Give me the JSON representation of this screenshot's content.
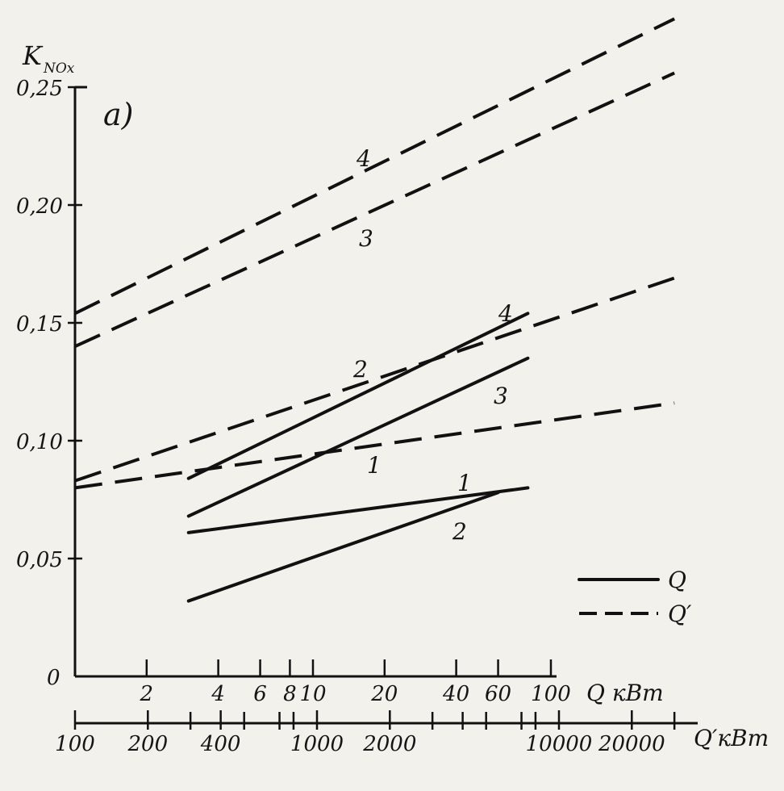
{
  "panel_label": "а)",
  "y_axis": {
    "label": "K",
    "label_sub": "NOx"
  },
  "y_ticks": [
    "0",
    "0,05",
    "0,10",
    "0,15",
    "0,20",
    "0,25"
  ],
  "q_axis_ticks": [
    "2",
    "4",
    "6",
    "8",
    "10",
    "20",
    "40",
    "60",
    "100"
  ],
  "q_axis_label": "Q кВт",
  "qp_axis_ticks": [
    "100",
    "200",
    "400",
    "1000",
    "2000",
    "10000",
    "20000"
  ],
  "qp_axis_label": "Q′кВт",
  "legend": {
    "solid": "Q",
    "dashed": "Q′"
  },
  "curve_labels": {
    "solid_1": "1",
    "solid_2": "2",
    "solid_3": "3",
    "solid_4": "4",
    "dashed_1": "1",
    "dashed_2": "2",
    "dashed_3": "3",
    "dashed_4": "4"
  },
  "chart_data": {
    "type": "line",
    "title": "",
    "ylabel": "K NOx",
    "ylim": [
      0,
      0.25
    ],
    "x_scale": "log",
    "xlabel_bottom_1": "Q кВт",
    "xlabel_bottom_2": "Q′кВт",
    "series": [
      {
        "name": "1",
        "axis": "Q",
        "style": "solid",
        "x": [
          3,
          80
        ],
        "y": [
          0.061,
          0.08
        ]
      },
      {
        "name": "2",
        "axis": "Q",
        "style": "solid",
        "x": [
          3,
          60
        ],
        "y": [
          0.032,
          0.078
        ]
      },
      {
        "name": "3",
        "axis": "Q",
        "style": "solid",
        "x": [
          3,
          80
        ],
        "y": [
          0.068,
          0.135
        ]
      },
      {
        "name": "4",
        "axis": "Q",
        "style": "solid",
        "x": [
          3,
          80
        ],
        "y": [
          0.084,
          0.154
        ]
      },
      {
        "name": "1",
        "axis": "Q′",
        "style": "dashed",
        "x": [
          100,
          30000
        ],
        "y": [
          0.08,
          0.116
        ]
      },
      {
        "name": "2",
        "axis": "Q′",
        "style": "dashed",
        "x": [
          100,
          30000
        ],
        "y": [
          0.083,
          0.169
        ]
      },
      {
        "name": "3",
        "axis": "Q′",
        "style": "dashed",
        "x": [
          100,
          30000
        ],
        "y": [
          0.14,
          0.256
        ]
      },
      {
        "name": "4",
        "axis": "Q′",
        "style": "dashed",
        "x": [
          100,
          30000
        ],
        "y": [
          0.154,
          0.279
        ]
      }
    ],
    "grid": false,
    "legend_position": "bottom-right"
  }
}
